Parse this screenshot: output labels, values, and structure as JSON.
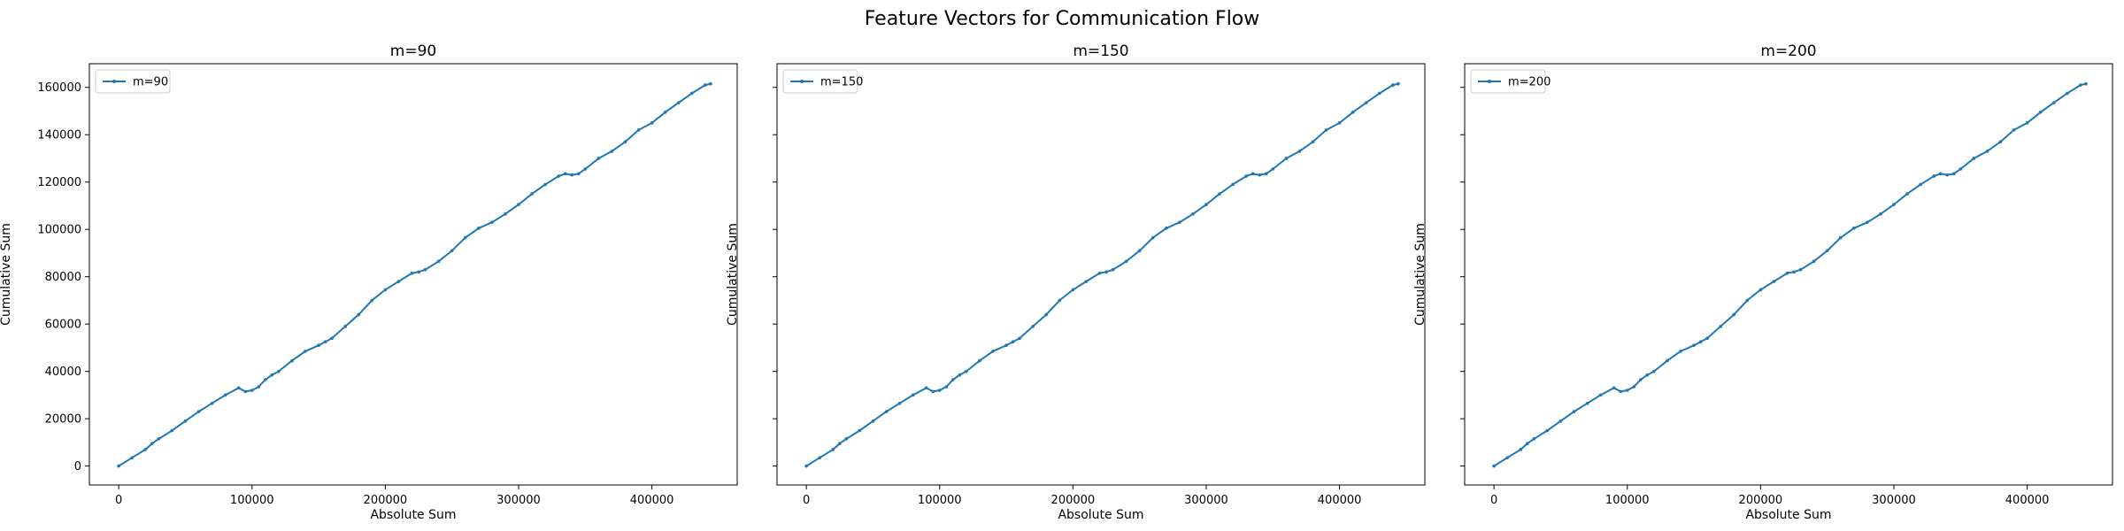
{
  "figure": {
    "title": "Feature Vectors for Communication Flow",
    "line_color": "#1f77b4"
  },
  "chart_data": [
    {
      "type": "line",
      "title": "m=90",
      "xlabel": "Absolute Sum",
      "ylabel": "Cumulative Sum",
      "xlim": [
        -22000,
        464000
      ],
      "ylim": [
        -8000,
        170000
      ],
      "xticks": [
        0,
        100000,
        200000,
        300000,
        400000
      ],
      "yticks": [
        0,
        20000,
        40000,
        60000,
        80000,
        100000,
        120000,
        140000,
        160000
      ],
      "legend": "upper left",
      "grid": false,
      "series": [
        {
          "name": "m=90",
          "x": [
            0,
            10000,
            20000,
            25000,
            30000,
            40000,
            50000,
            60000,
            70000,
            80000,
            90000,
            95000,
            100000,
            105000,
            110000,
            115000,
            120000,
            130000,
            140000,
            150000,
            155000,
            160000,
            170000,
            180000,
            190000,
            200000,
            210000,
            220000,
            225000,
            230000,
            240000,
            250000,
            260000,
            270000,
            280000,
            290000,
            300000,
            310000,
            320000,
            330000,
            335000,
            340000,
            345000,
            350000,
            360000,
            370000,
            380000,
            390000,
            400000,
            410000,
            420000,
            430000,
            440000,
            444000
          ],
          "y": [
            0,
            3500,
            7000,
            9500,
            11500,
            15000,
            19000,
            23000,
            26500,
            30000,
            33000,
            31500,
            32000,
            33500,
            36500,
            38500,
            40000,
            44500,
            48500,
            51000,
            52500,
            54000,
            59000,
            64000,
            70000,
            74500,
            78000,
            81500,
            82000,
            83000,
            86500,
            91000,
            96500,
            100500,
            103000,
            106500,
            110500,
            115000,
            119000,
            122500,
            123500,
            123000,
            123500,
            125500,
            130000,
            133000,
            137000,
            142000,
            145000,
            149500,
            153500,
            157500,
            161000,
            161500
          ]
        }
      ]
    },
    {
      "type": "line",
      "title": "m=150",
      "xlabel": "Absolute Sum",
      "ylabel": "Cumulative Sum",
      "xlim": [
        -22000,
        464000
      ],
      "ylim": [
        -8000,
        170000
      ],
      "xticks": [
        0,
        100000,
        200000,
        300000,
        400000
      ],
      "yticks": [],
      "legend": "upper left",
      "grid": false,
      "series": [
        {
          "name": "m=150",
          "x": [
            0,
            10000,
            20000,
            25000,
            30000,
            40000,
            50000,
            60000,
            70000,
            80000,
            90000,
            95000,
            100000,
            105000,
            110000,
            115000,
            120000,
            130000,
            140000,
            150000,
            155000,
            160000,
            170000,
            180000,
            190000,
            200000,
            210000,
            220000,
            225000,
            230000,
            240000,
            250000,
            260000,
            270000,
            280000,
            290000,
            300000,
            310000,
            320000,
            330000,
            335000,
            340000,
            345000,
            350000,
            360000,
            370000,
            380000,
            390000,
            400000,
            410000,
            420000,
            430000,
            440000,
            444000
          ],
          "y": [
            0,
            3500,
            7000,
            9500,
            11500,
            15000,
            19000,
            23000,
            26500,
            30000,
            33000,
            31500,
            32000,
            33500,
            36500,
            38500,
            40000,
            44500,
            48500,
            51000,
            52500,
            54000,
            59000,
            64000,
            70000,
            74500,
            78000,
            81500,
            82000,
            83000,
            86500,
            91000,
            96500,
            100500,
            103000,
            106500,
            110500,
            115000,
            119000,
            122500,
            123500,
            123000,
            123500,
            125500,
            130000,
            133000,
            137000,
            142000,
            145000,
            149500,
            153500,
            157500,
            161000,
            161500
          ]
        }
      ]
    },
    {
      "type": "line",
      "title": "m=200",
      "xlabel": "Absolute Sum",
      "ylabel": "Cumulative Sum",
      "xlim": [
        -22000,
        464000
      ],
      "ylim": [
        -8000,
        170000
      ],
      "xticks": [
        0,
        100000,
        200000,
        300000,
        400000
      ],
      "yticks": [],
      "legend": "upper left",
      "grid": false,
      "series": [
        {
          "name": "m=200",
          "x": [
            0,
            10000,
            20000,
            25000,
            30000,
            40000,
            50000,
            60000,
            70000,
            80000,
            90000,
            95000,
            100000,
            105000,
            110000,
            115000,
            120000,
            130000,
            140000,
            150000,
            155000,
            160000,
            170000,
            180000,
            190000,
            200000,
            210000,
            220000,
            225000,
            230000,
            240000,
            250000,
            260000,
            270000,
            280000,
            290000,
            300000,
            310000,
            320000,
            330000,
            335000,
            340000,
            345000,
            350000,
            360000,
            370000,
            380000,
            390000,
            400000,
            410000,
            420000,
            430000,
            440000,
            444000
          ],
          "y": [
            0,
            3500,
            7000,
            9500,
            11500,
            15000,
            19000,
            23000,
            26500,
            30000,
            33000,
            31500,
            32000,
            33500,
            36500,
            38500,
            40000,
            44500,
            48500,
            51000,
            52500,
            54000,
            59000,
            64000,
            70000,
            74500,
            78000,
            81500,
            82000,
            83000,
            86500,
            91000,
            96500,
            100500,
            103000,
            106500,
            110500,
            115000,
            119000,
            122500,
            123500,
            123000,
            123500,
            125500,
            130000,
            133000,
            137000,
            142000,
            145000,
            149500,
            153500,
            157500,
            161000,
            161500
          ]
        }
      ]
    }
  ]
}
